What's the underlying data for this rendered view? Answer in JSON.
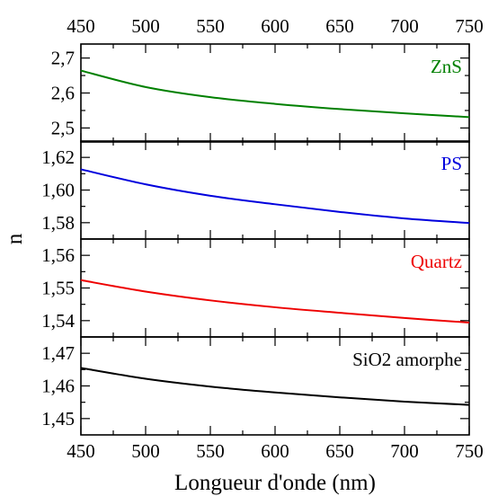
{
  "chart_data": {
    "type": "line",
    "title": "",
    "xlabel": "Longueur d'onde (nm)",
    "ylabel": "n",
    "xlim": [
      450,
      750
    ],
    "x_ticks": [
      450,
      500,
      550,
      600,
      650,
      700,
      750
    ],
    "x_tick_labels": [
      "450",
      "500",
      "550",
      "600",
      "650",
      "700",
      "750"
    ],
    "grid": false,
    "shared_x_axis_top_and_bottom": true,
    "panels": [
      {
        "label": "ZnS",
        "color": "#008000",
        "ylim": [
          2.46,
          2.74
        ],
        "y_ticks": [
          2.5,
          2.6,
          2.7
        ],
        "y_tick_labels": [
          "2,5",
          "2,6",
          "2,7"
        ],
        "x": [
          450,
          500,
          550,
          600,
          650,
          700,
          750
        ],
        "y": [
          2.664,
          2.617,
          2.588,
          2.569,
          2.554,
          2.542,
          2.531
        ]
      },
      {
        "label": "PS",
        "color": "#0000dd",
        "ylim": [
          1.57,
          1.63
        ],
        "y_ticks": [
          1.58,
          1.6,
          1.62
        ],
        "y_tick_labels": [
          "1,58",
          "1,60",
          "1,62"
        ],
        "x": [
          450,
          500,
          550,
          600,
          650,
          700,
          750
        ],
        "y": [
          1.6127,
          1.6035,
          1.5965,
          1.5913,
          1.5866,
          1.5826,
          1.5798
        ]
      },
      {
        "label": "Quartz",
        "color": "#ee0000",
        "ylim": [
          1.535,
          1.565
        ],
        "y_ticks": [
          1.54,
          1.55,
          1.56
        ],
        "y_tick_labels": [
          "1,54",
          "1,55",
          "1,56"
        ],
        "x": [
          450,
          500,
          550,
          600,
          650,
          700,
          750
        ],
        "y": [
          1.5524,
          1.5489,
          1.5462,
          1.5441,
          1.5424,
          1.5408,
          1.5394
        ]
      },
      {
        "label": "SiO2 amorphe",
        "color": "#000000",
        "ylim": [
          1.445,
          1.475
        ],
        "y_ticks": [
          1.45,
          1.46,
          1.47
        ],
        "y_tick_labels": [
          "1,45",
          "1,46",
          "1,47"
        ],
        "x": [
          450,
          500,
          550,
          600,
          650,
          700,
          750
        ],
        "y": [
          1.4655,
          1.4622,
          1.4598,
          1.458,
          1.4565,
          1.4552,
          1.4542
        ]
      }
    ]
  }
}
